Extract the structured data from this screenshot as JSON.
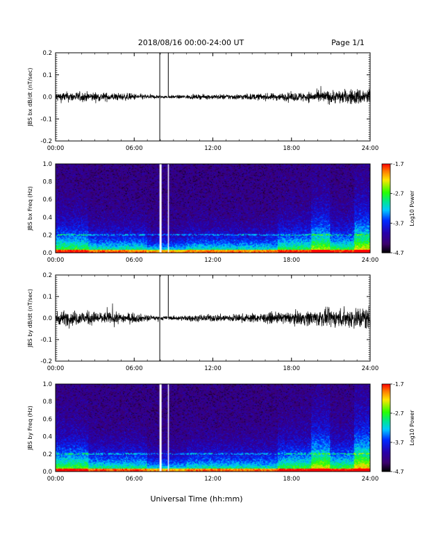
{
  "header": {
    "title": "2018/08/16  00:00-24:00 UT",
    "page": "Page 1/1"
  },
  "xaxis_label": "Universal Time (hh:mm)",
  "chart_data": [
    {
      "type": "line",
      "ylabel": "JBS bx dB/dt (nT/sec)",
      "ylim": [
        -0.2,
        0.2
      ],
      "yticks": [
        "0.2",
        "0.1",
        "0.0",
        "-0.1",
        "-0.2"
      ],
      "xticks": [
        "00:00",
        "06:00",
        "12:00",
        "18:00",
        "24:00"
      ],
      "xlim_hours": [
        0,
        24
      ],
      "noise_envelope": {
        "hours": [
          0,
          2,
          4,
          6,
          7,
          8,
          9,
          10,
          12,
          14,
          16,
          18,
          19,
          20,
          21,
          22,
          23,
          24
        ],
        "amplitude": [
          0.012,
          0.012,
          0.01,
          0.008,
          0.006,
          0.004,
          0.004,
          0.005,
          0.006,
          0.007,
          0.008,
          0.01,
          0.012,
          0.014,
          0.016,
          0.017,
          0.02,
          0.022
        ]
      },
      "gaps_hours": [
        [
          7.95,
          8.0
        ],
        [
          8.55,
          8.6
        ]
      ],
      "spikes": [
        {
          "hour": 7.95,
          "value": -0.2
        },
        {
          "hour": 7.95,
          "value": 0.2
        },
        {
          "hour": 8.6,
          "value": 0.2
        }
      ]
    },
    {
      "type": "heatmap",
      "ylabel": "JBS bx Freq (Hz)",
      "ylim": [
        0.0,
        1.0
      ],
      "yticks": [
        "1.0",
        "0.8",
        "0.6",
        "0.4",
        "0.2",
        "0.0"
      ],
      "xticks": [
        "00:00",
        "06:00",
        "12:00",
        "18:00",
        "24:00"
      ],
      "gaps_hours": [
        [
          7.95,
          8.05
        ],
        [
          8.55,
          8.65
        ]
      ],
      "colorbar": {
        "label": "Log10 Power",
        "ticks": [
          "-1.7",
          "-2.7",
          "-3.7",
          "-4.7"
        ],
        "range": [
          -4.7,
          -1.7
        ]
      }
    },
    {
      "type": "line",
      "ylabel": "JBS by dB/dt (nT/sec)",
      "ylim": [
        -0.2,
        0.2
      ],
      "yticks": [
        "0.2",
        "0.1",
        "0.0",
        "-0.1",
        "-0.2"
      ],
      "xticks": [
        "00:00",
        "06:00",
        "12:00",
        "18:00",
        "24:00"
      ],
      "xlim_hours": [
        0,
        24
      ],
      "noise_envelope": {
        "hours": [
          0,
          2,
          4,
          6,
          7,
          8,
          9,
          10,
          12,
          14,
          16,
          18,
          19,
          20,
          21,
          22,
          23,
          24
        ],
        "amplitude": [
          0.018,
          0.018,
          0.014,
          0.012,
          0.008,
          0.005,
          0.005,
          0.007,
          0.009,
          0.01,
          0.012,
          0.015,
          0.018,
          0.02,
          0.022,
          0.024,
          0.028,
          0.03
        ]
      },
      "gaps_hours": [
        [
          7.95,
          8.0
        ],
        [
          8.55,
          8.6
        ]
      ],
      "spikes": [
        {
          "hour": 7.95,
          "value": -0.2
        },
        {
          "hour": 7.95,
          "value": 0.2
        },
        {
          "hour": 8.6,
          "value": 0.2
        }
      ]
    },
    {
      "type": "heatmap",
      "ylabel": "JBS by Freq (Hz)",
      "ylim": [
        0.0,
        1.0
      ],
      "yticks": [
        "1.0",
        "0.8",
        "0.6",
        "0.4",
        "0.2",
        "0.0"
      ],
      "xticks": [
        "00:00",
        "06:00",
        "12:00",
        "18:00",
        "24:00"
      ],
      "gaps_hours": [
        [
          7.95,
          8.05
        ],
        [
          8.55,
          8.65
        ]
      ],
      "colorbar": {
        "label": "Log10 Power",
        "ticks": [
          "-1.7",
          "-2.7",
          "-3.7",
          "-4.7"
        ],
        "range": [
          -4.7,
          -1.7
        ]
      }
    }
  ]
}
